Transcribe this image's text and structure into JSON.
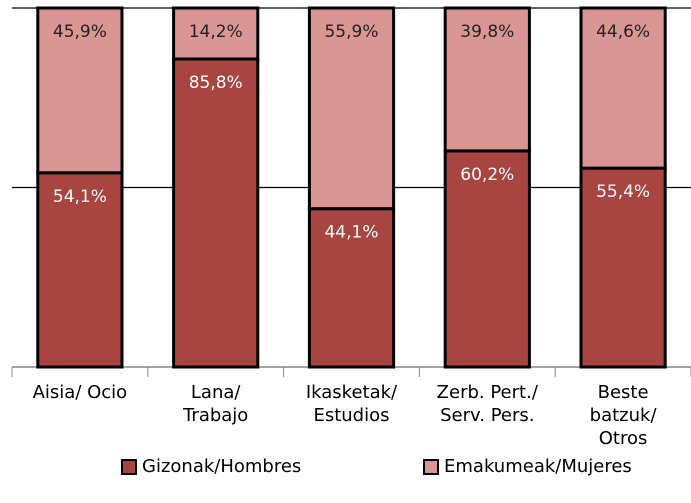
{
  "chart_data": {
    "type": "stacked_bar",
    "categories": [
      "Aisia/ Ocio",
      "Lana/\nTrabajo",
      "Ikasketak/\nEstudios",
      "Zerb. Pert./\nServ. Pers.",
      "Beste\nbatzuk/\nOtros"
    ],
    "series": [
      {
        "name": "Gizonak/Hombres",
        "color": "#a94541",
        "values": [
          54.1,
          85.8,
          44.1,
          60.2,
          55.4
        ],
        "value_labels": [
          "54,1%",
          "85,8%",
          "44,1%",
          "60,2%",
          "55,4%"
        ]
      },
      {
        "name": "Emakumeak/Mujeres",
        "color": "#d99694",
        "values": [
          45.9,
          14.2,
          55.9,
          39.8,
          44.6
        ],
        "value_labels": [
          "45,9%",
          "14,2%",
          "55,9%",
          "39,8%",
          "44,6%"
        ]
      }
    ],
    "ylim": [
      0,
      100
    ],
    "yticks": [
      0,
      50,
      100
    ],
    "grid": true
  }
}
